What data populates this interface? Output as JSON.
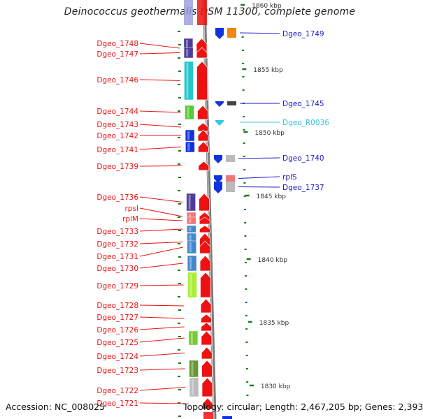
{
  "title": "Deinococcus geothermalis DSM 11300, complete genome",
  "footer": {
    "accession": "Accession: NC_008025",
    "stats": "Topology: circular; Length: 2,467,205 bp; Genes: 2,393"
  },
  "colors": {
    "left_label": "#ee1111",
    "right_label": "#1a1acc",
    "rna_label": "#33c6e8",
    "tick": "#1a7a1a",
    "axis": "#888888"
  },
  "scale_labels": [
    "1860 kbp",
    "1855 kbp",
    "1850 kbp",
    "1845 kbp",
    "1840 kbp",
    "1835 kbp",
    "1830 kbp"
  ],
  "left_genes": [
    {
      "name": "Dgeo_1748",
      "color": "#4d3d99"
    },
    {
      "name": "Dgeo_1747",
      "color": "#4d3d99"
    },
    {
      "name": "Dgeo_1746",
      "color": "#22c8cc"
    },
    {
      "name": "Dgeo_1744",
      "color": "#55cc33"
    },
    {
      "name": "Dgeo_1743",
      "color": "#ffffff"
    },
    {
      "name": "Dgeo_1742",
      "color": "#1133dd"
    },
    {
      "name": "Dgeo_1741",
      "color": "#1133dd"
    },
    {
      "name": "Dgeo_1739",
      "color": "#ffffff"
    },
    {
      "name": "Dgeo_1736",
      "color": "#4d3d99"
    },
    {
      "name": "rpsI",
      "color": "#ee7777"
    },
    {
      "name": "rplM",
      "color": "#ee7777"
    },
    {
      "name": "Dgeo_1733",
      "color": "#4488cc"
    },
    {
      "name": "Dgeo_1732",
      "color": "#4488cc"
    },
    {
      "name": "Dgeo_1731",
      "color": "#4488cc"
    },
    {
      "name": "Dgeo_1730",
      "color": "#4488cc"
    },
    {
      "name": "Dgeo_1729",
      "color": "#aaee33"
    },
    {
      "name": "Dgeo_1728",
      "color": "#ffffff"
    },
    {
      "name": "Dgeo_1727",
      "color": "#ffffff"
    },
    {
      "name": "Dgeo_1726",
      "color": "#ffffff"
    },
    {
      "name": "Dgeo_1725",
      "color": "#77cc33"
    },
    {
      "name": "Dgeo_1724",
      "color": "#ffffff"
    },
    {
      "name": "Dgeo_1723",
      "color": "#669933"
    },
    {
      "name": "Dgeo_1722",
      "color": "#bbbbbb"
    },
    {
      "name": "Dgeo_1721",
      "color": "#ffffff"
    }
  ],
  "right_genes": [
    {
      "name": "Dgeo_1749",
      "color": "#ee8811",
      "kind": "gene"
    },
    {
      "name": "Dgeo_1745",
      "color": "#444444",
      "kind": "gene"
    },
    {
      "name": "Dgeo_R0036",
      "color": "#33c6e8",
      "kind": "rna"
    },
    {
      "name": "Dgeo_1740",
      "color": "#bbbbbb",
      "kind": "gene"
    },
    {
      "name": "rplS",
      "color": "#ee7777",
      "kind": "gene"
    },
    {
      "name": "Dgeo_1737",
      "color": "#bbbbbb",
      "kind": "gene"
    }
  ]
}
